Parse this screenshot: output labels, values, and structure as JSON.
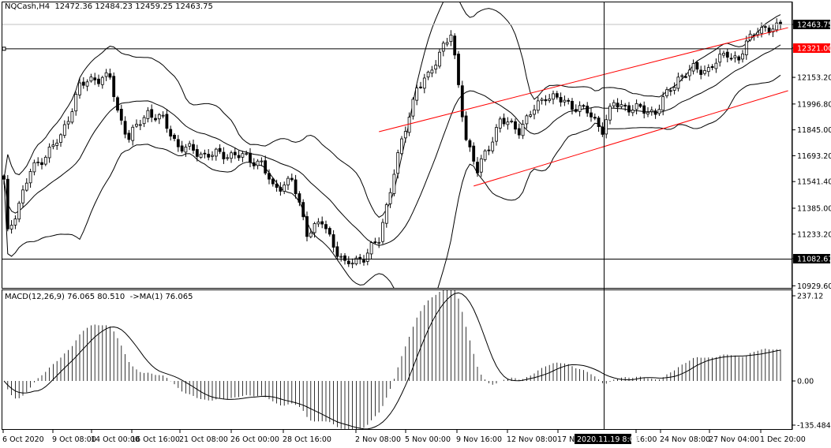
{
  "header": {
    "symbol": "NQCash,H4",
    "ohlc": "12472.36 12484.23 12459.25 12463.75"
  },
  "macd_header": {
    "label": "MACD(12,26,9) 76.065 80.510  ->MA(1) 76.065"
  },
  "colors": {
    "trendline": "#ff0000",
    "bid_line": "#c0c0c0",
    "label_bg": "#000000",
    "hline_label_bg": "#ff0000"
  },
  "chart_data": [
    {
      "type": "candlestick",
      "title": "NQCash,H4",
      "price_axis_ticks": [
        "12153.20",
        "11996.80",
        "11845.00",
        "11693.20",
        "11541.40",
        "11385.00",
        "11233.20",
        "10929.60"
      ],
      "price_labels": {
        "bid": "12463.75",
        "hline": "12321.00",
        "crosshair": "11082.67"
      },
      "crosshair_time": "2020.11.19 8:00",
      "time_ticks": [
        "6 Oct 2020",
        "9 Oct 08:00",
        "14 Oct 00:00",
        "16 Oct 16:00",
        "21 Oct 08:00",
        "26 Oct 00:00",
        "28 Oct 16:00",
        "2 Nov 08:00",
        "5 Nov 00:00",
        "9 Nov 16:00",
        "12 Nov 08:00",
        "17 N",
        "16:00",
        "24 Nov 08:00",
        "27 Nov 04:00",
        "1 Dec 20:00"
      ],
      "ylim": [
        10900,
        12540
      ],
      "indicators": [
        "Bollinger Bands (20, 2)"
      ],
      "close_path_anchors": [
        [
          0,
          11541
        ],
        [
          1,
          11233
        ],
        [
          7,
          11600
        ],
        [
          15,
          11800
        ],
        [
          20,
          12100
        ],
        [
          24,
          12150
        ],
        [
          28,
          12150
        ],
        [
          30,
          11950
        ],
        [
          33,
          11800
        ],
        [
          38,
          11950
        ],
        [
          42,
          11900
        ],
        [
          46,
          11750
        ],
        [
          53,
          11700
        ],
        [
          61,
          11700
        ],
        [
          68,
          11650
        ],
        [
          71,
          11500
        ],
        [
          76,
          11550
        ],
        [
          80,
          11250
        ],
        [
          84,
          11300
        ],
        [
          90,
          11050
        ],
        [
          95,
          11100
        ],
        [
          99,
          11200
        ],
        [
          101,
          11400
        ],
        [
          103,
          11600
        ],
        [
          106,
          11850
        ],
        [
          109,
          12100
        ],
        [
          112,
          12150
        ],
        [
          116,
          12350
        ],
        [
          118,
          12400
        ],
        [
          120,
          12100
        ],
        [
          122,
          11800
        ],
        [
          125,
          11600
        ],
        [
          128,
          11750
        ],
        [
          131,
          11900
        ],
        [
          136,
          11850
        ],
        [
          143,
          12050
        ],
        [
          149,
          12000
        ],
        [
          154,
          11950
        ],
        [
          158,
          11850
        ],
        [
          161,
          12000
        ],
        [
          166,
          11970
        ],
        [
          172,
          11950
        ],
        [
          175,
          12050
        ],
        [
          178,
          12150
        ],
        [
          182,
          12200
        ],
        [
          186,
          12200
        ],
        [
          191,
          12300
        ],
        [
          194,
          12250
        ],
        [
          196,
          12350
        ],
        [
          199,
          12450
        ],
        [
          202,
          12420
        ],
        [
          205,
          12463.75
        ]
      ],
      "trendlines": [
        {
          "from": [
            99,
            11834
          ],
          "to": [
            207,
            12445
          ]
        },
        {
          "from": [
            124,
            11515
          ],
          "to": [
            207,
            12075
          ]
        }
      ],
      "hlines": [
        12321.0
      ]
    },
    {
      "type": "bar+line",
      "title": "MACD(12,26,9)",
      "axis_ticks": [
        "237.12",
        "0.00",
        "-135.484"
      ],
      "ylim": [
        -135.484,
        237.12
      ],
      "last_values": {
        "macd": 76.065,
        "signal": 80.51
      }
    }
  ]
}
